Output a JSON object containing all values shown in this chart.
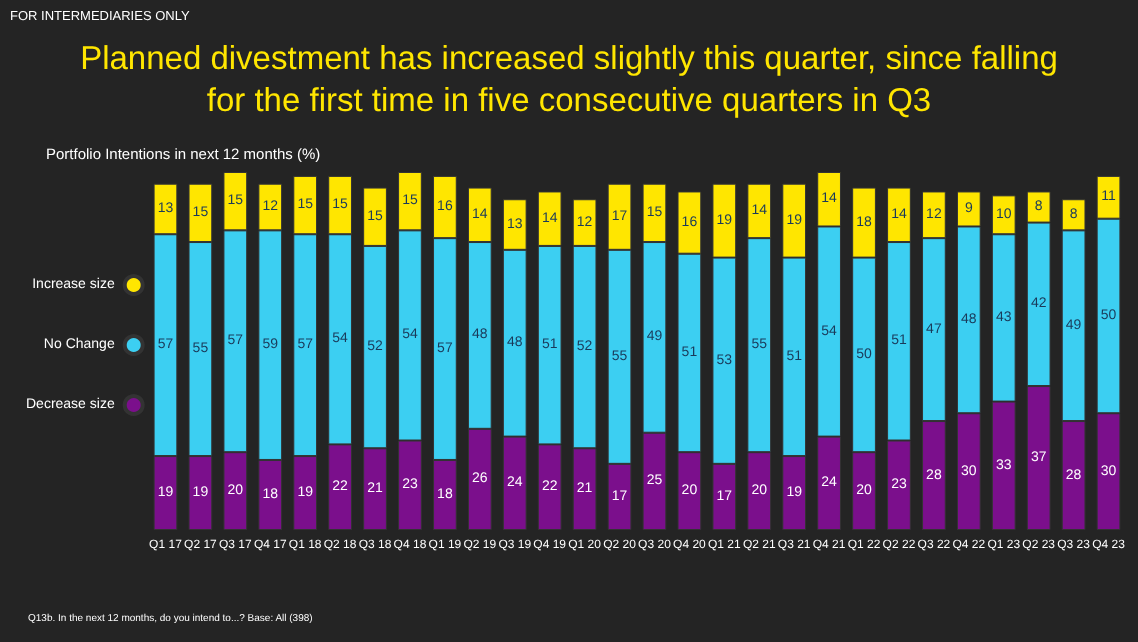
{
  "chart_data": {
    "type": "bar",
    "title": "Planned divestment has increased slightly this quarter, since falling\nfor the first time in five consecutive quarters in Q3",
    "subtitle": "Portfolio Intentions in next 12 months (%)",
    "annotations": [
      "FOR INTERMEDIARIES ONLY",
      "Q13b. In the next 12 months, do you intend to...? Base: All (398)"
    ],
    "categories": [
      "Q1 17",
      "Q2 17",
      "Q3 17",
      "Q4 17",
      "Q1 18",
      "Q2 18",
      "Q3 18",
      "Q4 18",
      "Q1 19",
      "Q2 19",
      "Q3 19",
      "Q4 19",
      "Q1 20",
      "Q2 20",
      "Q3 20",
      "Q4 20",
      "Q1 21",
      "Q2 21",
      "Q3 21",
      "Q4 21",
      "Q1 22",
      "Q2 22",
      "Q3 22",
      "Q4 22",
      "Q1 23",
      "Q2 23",
      "Q3 23",
      "Q4 23"
    ],
    "stacked": true,
    "data_labels": true,
    "legend": "left",
    "series": [
      {
        "name": "Decrease size",
        "color": "#7b0f8c",
        "values": [
          19,
          19,
          20,
          18,
          19,
          22,
          21,
          23,
          18,
          26,
          24,
          22,
          21,
          17,
          25,
          20,
          17,
          20,
          19,
          24,
          20,
          23,
          28,
          30,
          33,
          37,
          28,
          30
        ]
      },
      {
        "name": "No Change",
        "color": "#3ccff2",
        "values": [
          57,
          55,
          57,
          59,
          57,
          54,
          52,
          54,
          57,
          48,
          48,
          51,
          52,
          55,
          49,
          51,
          53,
          55,
          51,
          54,
          50,
          51,
          47,
          48,
          43,
          42,
          49,
          50
        ]
      },
      {
        "name": "Increase size",
        "color": "#ffe600",
        "values": [
          13,
          15,
          15,
          12,
          15,
          15,
          15,
          15,
          16,
          14,
          13,
          14,
          12,
          17,
          15,
          16,
          19,
          14,
          19,
          14,
          18,
          14,
          12,
          9,
          10,
          8,
          8,
          11
        ]
      }
    ]
  }
}
